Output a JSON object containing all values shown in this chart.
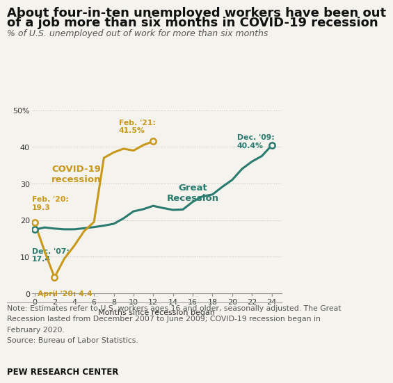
{
  "title_line1": "About four-in-ten unemployed workers have been out",
  "title_line2": "of a job more than six months in COVID-19 recession",
  "subtitle": "% of U.S. unemployed out of work for more than six months",
  "xlabel": "Months since recession began",
  "note_line1": "Note: Estimates refer to U.S. workers ages 16 and older, seasonally adjusted. The Great",
  "note_line2": "Recession lasted from December 2007 to June 2009; COVID-19 recession began in",
  "note_line3": "February 2020.",
  "note_line4": "Source: Bureau of Labor Statistics.",
  "source_label": "PEW RESEARCH CENTER",
  "great_recession_color": "#2A7B6F",
  "covid_color": "#C8981A",
  "great_recession_x": [
    0,
    1,
    2,
    3,
    4,
    5,
    6,
    7,
    8,
    9,
    10,
    11,
    12,
    13,
    14,
    15,
    16,
    17,
    18,
    19,
    20,
    21,
    22,
    23,
    24
  ],
  "great_recession_y": [
    17.4,
    18.0,
    17.7,
    17.5,
    17.5,
    17.8,
    18.1,
    18.5,
    19.0,
    20.5,
    22.4,
    23.0,
    23.9,
    23.3,
    22.8,
    22.9,
    25.0,
    26.5,
    27.0,
    29.1,
    31.0,
    34.0,
    36.0,
    37.5,
    40.4
  ],
  "covid_x": [
    0,
    1,
    2,
    3,
    4,
    5,
    6,
    7,
    8,
    9,
    10,
    11,
    12
  ],
  "covid_y": [
    19.3,
    11.5,
    4.4,
    9.5,
    13.0,
    17.0,
    19.5,
    37.0,
    38.5,
    39.5,
    39.0,
    40.5,
    41.5
  ],
  "ylim": [
    0,
    52
  ],
  "xlim": [
    -0.3,
    25.0
  ],
  "yticks": [
    0,
    10,
    20,
    30,
    40,
    50
  ],
  "ytick_labels": [
    "0",
    "10",
    "20",
    "30",
    "40",
    "50%"
  ],
  "xticks": [
    0,
    2,
    4,
    6,
    8,
    10,
    12,
    14,
    16,
    18,
    20,
    22,
    24
  ],
  "background_color": "#F5F3EE",
  "grid_color": "#BBBBBB",
  "title_fontsize": 13,
  "subtitle_fontsize": 9,
  "label_fontsize": 8,
  "note_fontsize": 7.8,
  "axis_tick_fontsize": 8
}
